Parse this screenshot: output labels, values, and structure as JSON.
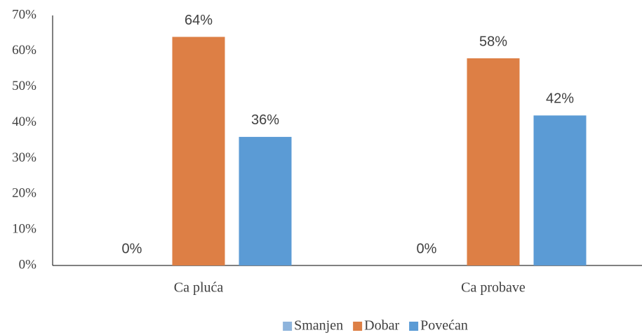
{
  "chart_data": {
    "type": "bar",
    "categories": [
      "Ca pluća",
      "Ca probave"
    ],
    "series": [
      {
        "name": "Smanjen",
        "color": "#8eb4dc",
        "values": [
          0,
          0
        ],
        "value_labels": [
          "0%",
          "0%"
        ]
      },
      {
        "name": "Dobar",
        "color": "#dd7f45",
        "values": [
          64,
          58
        ],
        "value_labels": [
          "64%",
          "58%"
        ]
      },
      {
        "name": "Povećan",
        "color": "#5b9bd5",
        "values": [
          36,
          42
        ],
        "value_labels": [
          "36%",
          "42%"
        ]
      }
    ],
    "ylim": [
      0,
      70
    ],
    "yticks": [
      {
        "value": 0,
        "label": "0%"
      },
      {
        "value": 10,
        "label": "10%"
      },
      {
        "value": 20,
        "label": "20%"
      },
      {
        "value": 30,
        "label": "30%"
      },
      {
        "value": 40,
        "label": "40%"
      },
      {
        "value": 50,
        "label": "50%"
      },
      {
        "value": 60,
        "label": "60%"
      },
      {
        "value": 70,
        "label": "70%"
      }
    ],
    "grid": false,
    "legend": "bottom"
  }
}
